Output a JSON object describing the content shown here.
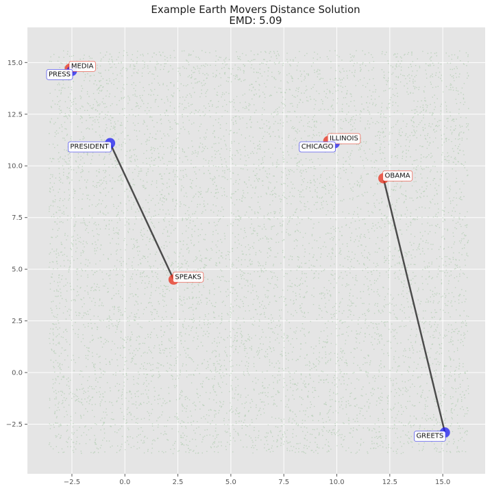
{
  "chart_data": {
    "type": "scatter",
    "title": "Example Earth Movers Distance Solution",
    "subtitle": "EMD: 5.09",
    "xlabel": "",
    "ylabel": "",
    "xlim": [
      -4.6,
      17.0
    ],
    "ylim": [
      -4.9,
      16.7
    ],
    "xticks": [
      -2.5,
      0.0,
      2.5,
      5.0,
      7.5,
      10.0,
      12.5,
      15.0
    ],
    "yticks": [
      -2.5,
      0.0,
      2.5,
      5.0,
      7.5,
      10.0,
      12.5,
      15.0
    ],
    "xtick_labels": [
      "−2.5",
      "0.0",
      "2.5",
      "5.0",
      "7.5",
      "10.0",
      "12.5",
      "15.0"
    ],
    "ytick_labels": [
      "−2.5",
      "0.0",
      "2.5",
      "5.0",
      "7.5",
      "10.0",
      "12.5",
      "15.0"
    ],
    "grid": true,
    "background_color": "#e5e5e5",
    "background_points": {
      "color": "#5aa55a",
      "x_range": [
        -3.6,
        16.2
      ],
      "y_range": [
        -3.9,
        15.6
      ]
    },
    "words": [
      {
        "label": "MEDIA",
        "x": -2.6,
        "y": 14.7,
        "group": "red"
      },
      {
        "label": "PRESS",
        "x": -2.5,
        "y": 14.6,
        "group": "blue"
      },
      {
        "label": "PRESIDENT",
        "x": -0.7,
        "y": 11.1,
        "group": "blue"
      },
      {
        "label": "ILLINOIS",
        "x": 9.6,
        "y": 11.2,
        "group": "red"
      },
      {
        "label": "CHICAGO",
        "x": 9.9,
        "y": 11.1,
        "group": "blue"
      },
      {
        "label": "OBAMA",
        "x": 12.2,
        "y": 9.4,
        "group": "red"
      },
      {
        "label": "SPEAKS",
        "x": 2.3,
        "y": 4.5,
        "group": "red"
      },
      {
        "label": "GREETS",
        "x": 15.1,
        "y": -2.9,
        "group": "blue"
      }
    ],
    "flows": [
      {
        "from": "PRESIDENT",
        "to": "SPEAKS"
      },
      {
        "from": "OBAMA",
        "to": "GREETS"
      }
    ],
    "colors": {
      "red": "#e8301c",
      "blue": "#1d1df0",
      "flow_line": "#3a3a3a",
      "grid": "#ffffff",
      "tick": "#555555"
    }
  }
}
